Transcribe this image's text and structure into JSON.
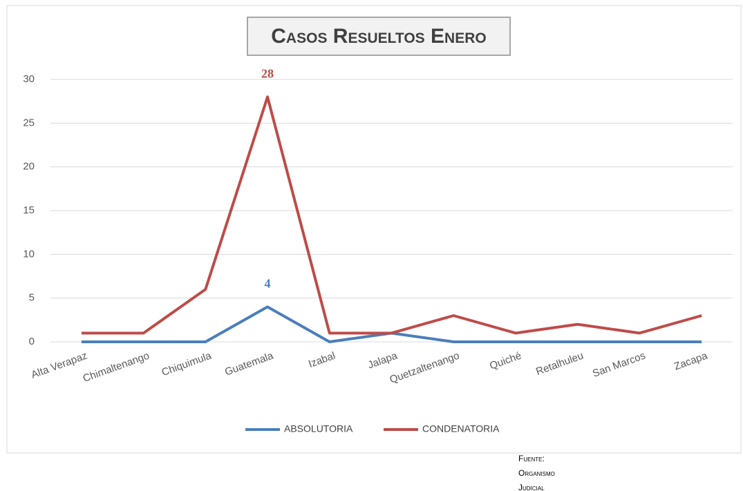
{
  "chart_data": {
    "type": "line",
    "title": "Casos Resueltos Enero",
    "categories": [
      "Alta Verapaz",
      "Chimaltenango",
      "Chiquimula",
      "Guatemala",
      "Izabal",
      "Jalapa",
      "Quetzaltenango",
      "Quiché",
      "Retalhuleu",
      "San Marcos",
      "Zacapa"
    ],
    "series": [
      {
        "name": "ABSOLUTORIA",
        "color": "#4a7ebb",
        "values": [
          0,
          0,
          0,
          4,
          0,
          1,
          0,
          0,
          0,
          0,
          0
        ]
      },
      {
        "name": "CONDENATORIA",
        "color": "#be4b48",
        "values": [
          1,
          1,
          6,
          28,
          1,
          1,
          3,
          1,
          2,
          1,
          3
        ]
      }
    ],
    "ylim": [
      0,
      30
    ],
    "yticks": [
      0,
      5,
      10,
      15,
      20,
      25,
      30
    ],
    "grid": true,
    "legend": "bottom",
    "source": [
      "Fuente:",
      "Organismo",
      "Judicial"
    ]
  }
}
